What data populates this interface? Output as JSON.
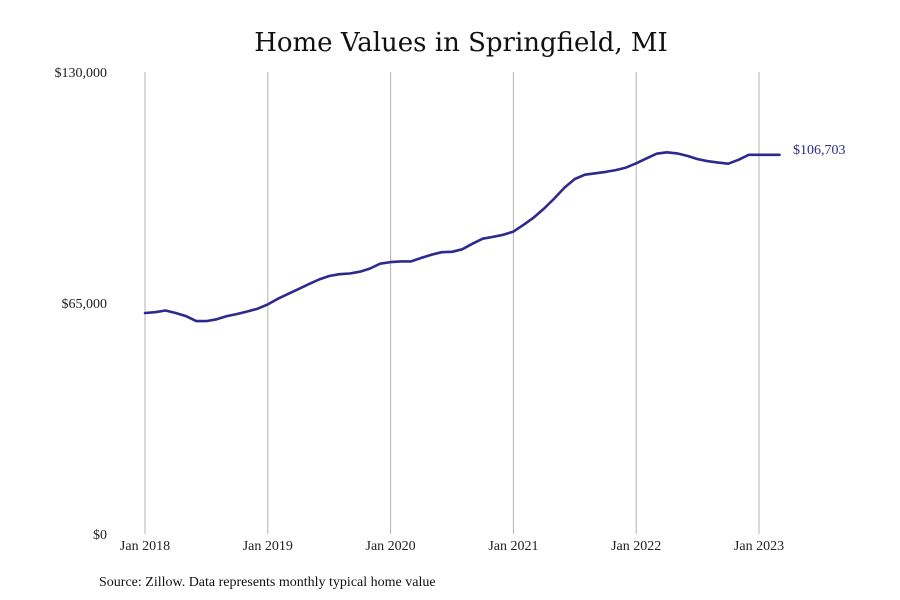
{
  "chart_data": {
    "type": "line",
    "title": "Home Values in Springfield, MI",
    "xlabel": "",
    "ylabel": "",
    "ylim": [
      0,
      130000
    ],
    "y_ticks": [
      {
        "value": 0,
        "label": "$0"
      },
      {
        "value": 65000,
        "label": "$65,000"
      },
      {
        "value": 130000,
        "label": "$130,000"
      }
    ],
    "x_ticks": [
      {
        "value": "2018-01",
        "label": "Jan 2018"
      },
      {
        "value": "2019-01",
        "label": "Jan 2019"
      },
      {
        "value": "2020-01",
        "label": "Jan 2020"
      },
      {
        "value": "2021-01",
        "label": "Jan 2021"
      },
      {
        "value": "2022-01",
        "label": "Jan 2022"
      },
      {
        "value": "2023-01",
        "label": "Jan 2023"
      }
    ],
    "x_grid": true,
    "line_color": "#2e2a8c",
    "end_label": "$106,703",
    "source": "Source: Zillow. Data represents monthly typical home value",
    "series": [
      {
        "x": [
          "2018-01",
          "2018-02",
          "2018-03",
          "2018-04",
          "2018-05",
          "2018-06",
          "2018-07",
          "2018-08",
          "2018-09",
          "2018-10",
          "2018-11",
          "2018-12",
          "2019-01",
          "2019-02",
          "2019-03",
          "2019-04",
          "2019-05",
          "2019-06",
          "2019-07",
          "2019-08",
          "2019-09",
          "2019-10",
          "2019-11",
          "2019-12",
          "2020-01",
          "2020-02",
          "2020-03",
          "2020-04",
          "2020-05",
          "2020-06",
          "2020-07",
          "2020-08",
          "2020-09",
          "2020-10",
          "2020-11",
          "2020-12",
          "2021-01",
          "2021-02",
          "2021-03",
          "2021-04",
          "2021-05",
          "2021-06",
          "2021-07",
          "2021-08",
          "2021-09",
          "2021-10",
          "2021-11",
          "2021-12",
          "2022-01",
          "2022-02",
          "2022-03",
          "2022-04",
          "2022-05",
          "2022-06",
          "2022-07",
          "2022-08",
          "2022-09",
          "2022-10",
          "2022-11",
          "2022-12",
          "2023-01",
          "2023-02",
          "2023-03"
        ],
        "values": [
          62200,
          62400,
          62900,
          62200,
          61300,
          59900,
          59900,
          60400,
          61300,
          61900,
          62600,
          63400,
          64600,
          66200,
          67600,
          68900,
          70300,
          71600,
          72600,
          73100,
          73300,
          73800,
          74700,
          76100,
          76500,
          76700,
          76700,
          77700,
          78600,
          79300,
          79400,
          80100,
          81700,
          83100,
          83600,
          84200,
          85100,
          87000,
          89100,
          91600,
          94400,
          97500,
          99900,
          101100,
          101500,
          101900,
          102400,
          103100,
          104300,
          105700,
          107000,
          107400,
          107100,
          106400,
          105500,
          104900,
          104500,
          104200,
          105300,
          106703,
          106703,
          106703,
          106703
        ]
      }
    ]
  }
}
